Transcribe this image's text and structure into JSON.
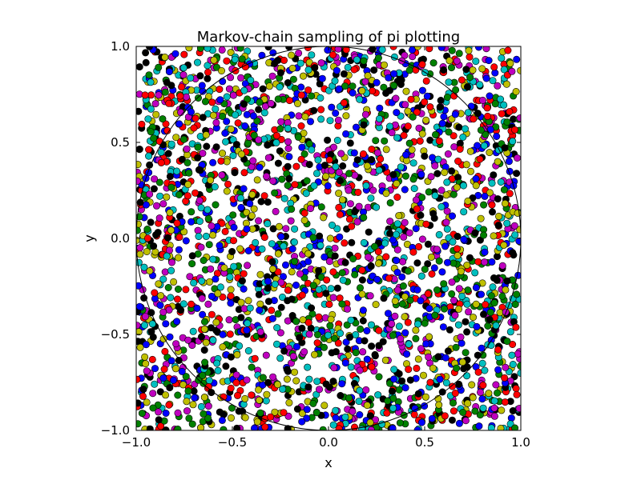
{
  "chart_data": {
    "type": "scatter",
    "title": "Markov-chain sampling of pi plotting",
    "xlabel": "x",
    "ylabel": "y",
    "xlim": [
      -1.0,
      1.0
    ],
    "ylim": [
      -1.0,
      1.0
    ],
    "x_ticks": [
      -1.0,
      -0.5,
      0.0,
      0.5,
      1.0
    ],
    "y_ticks": [
      -1.0,
      -0.5,
      0.0,
      0.5,
      1.0
    ],
    "x_tick_labels": [
      "−1.0",
      "−0.5",
      "0.0",
      "0.5",
      "1.0"
    ],
    "y_tick_labels": [
      "−1.0",
      "−0.5",
      "0.0",
      "0.5",
      "1.0"
    ],
    "grid": false,
    "legend": "none",
    "reference_shape": {
      "type": "circle",
      "center": [
        0,
        0
      ],
      "radius": 1.0,
      "color": "#000000"
    },
    "series": [
      {
        "color": "#0000ff",
        "points_shown": 400
      },
      {
        "color": "#008000",
        "points_shown": 400
      },
      {
        "color": "#ff0000",
        "points_shown": 400
      },
      {
        "color": "#00bfbf",
        "points_shown": 400
      },
      {
        "color": "#bf00bf",
        "points_shown": 400
      },
      {
        "color": "#bfbf00",
        "points_shown": 400
      },
      {
        "color": "#000000",
        "points_shown": 400
      }
    ],
    "marker": "circle",
    "marker_edge_color": "#000000"
  }
}
